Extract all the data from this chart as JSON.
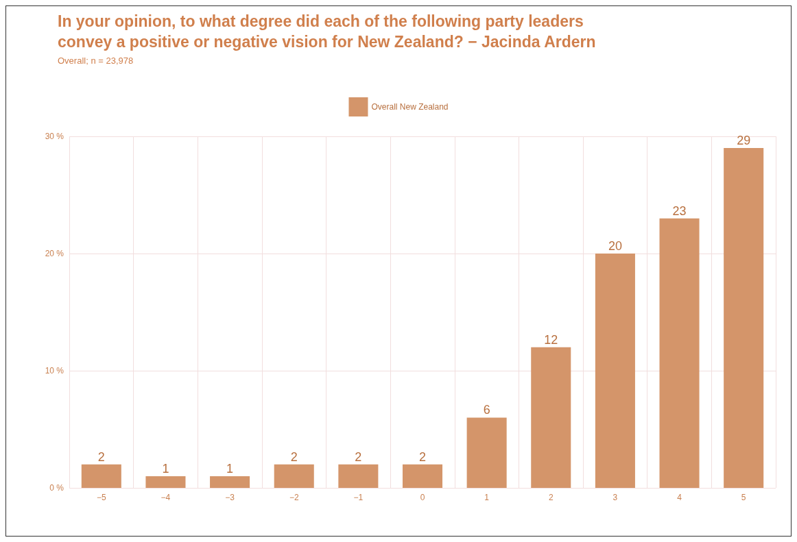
{
  "chart_data": {
    "type": "bar",
    "title": "In your opinion, to what degree did each of the following party leaders\nconvey a positive or negative vision for New Zealand? − Jacinda Ardern",
    "subtitle": "Overall; n = 23,978",
    "categories": [
      "−5",
      "−4",
      "−3",
      "−2",
      "−1",
      "0",
      "1",
      "2",
      "3",
      "4",
      "5"
    ],
    "series": [
      {
        "name": "Overall New Zealand",
        "color": "#d4956a",
        "values": [
          2,
          1,
          1,
          2,
          2,
          2,
          6,
          12,
          20,
          23,
          29
        ]
      }
    ],
    "ylim": [
      0,
      30
    ],
    "yticks": [
      {
        "value": 0,
        "label": "0 %"
      },
      {
        "value": 10,
        "label": "10 %"
      },
      {
        "value": 20,
        "label": "20 %"
      },
      {
        "value": 30,
        "label": "30 %"
      }
    ],
    "grid": true,
    "legend": "top",
    "data_labels": true
  }
}
